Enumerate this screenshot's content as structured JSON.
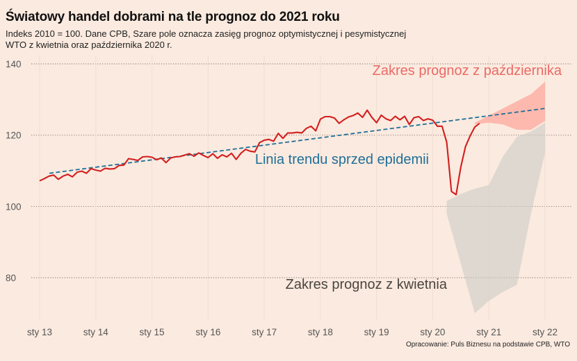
{
  "title": "Światowy handel dobrami na tle prognoz do 2021 roku",
  "subtitle": "Indeks 2010 = 100. Dane CPB, Szare pole oznacza zasięg prognoz optymistycznej i pesymistycznej WTO z kwietnia oraz października 2020 r.",
  "source": "Opracowanie: Puls Biznesu na podstawie CPB, WTO",
  "colors": {
    "background": "#fbeadf",
    "series": "#d21f1f",
    "trend": "#1f6f99",
    "october_band": "#ff8f85",
    "april_band": "#cdccc6"
  },
  "chart_data": {
    "type": "line",
    "xlim": [
      2013.0,
      2022.0
    ],
    "ylim": [
      68,
      142
    ],
    "grid": true,
    "x_ticks": [
      {
        "x": 2013.0,
        "label": "sty 13"
      },
      {
        "x": 2014.0,
        "label": "sty 14"
      },
      {
        "x": 2015.0,
        "label": "sty 15"
      },
      {
        "x": 2016.0,
        "label": "sty 16"
      },
      {
        "x": 2017.0,
        "label": "sty 17"
      },
      {
        "x": 2018.0,
        "label": "sty 18"
      },
      {
        "x": 2019.0,
        "label": "sty 19"
      },
      {
        "x": 2020.0,
        "label": "sty 20"
      },
      {
        "x": 2021.0,
        "label": "sty 21"
      },
      {
        "x": 2022.0,
        "label": "sty 22"
      }
    ],
    "y_ticks": [
      {
        "y": 80,
        "label": "80"
      },
      {
        "y": 100,
        "label": "100"
      },
      {
        "y": 120,
        "label": "120"
      },
      {
        "y": 140,
        "label": "140"
      }
    ],
    "annotations": {
      "october": "Zakres prognoz z października",
      "trend": "Linia trendu sprzed epidemii",
      "april": "Zakres prognoz z kwietnia"
    },
    "trend": {
      "x": [
        2013.0,
        2022.0
      ],
      "y": [
        109.3,
        127.5
      ]
    },
    "april_band": {
      "x": [
        2020.25,
        2020.5,
        2020.75,
        2021.0,
        2021.25,
        2021.5,
        2021.75,
        2022.0
      ],
      "upper": [
        101.5,
        103.5,
        105,
        106,
        114,
        119.5,
        121,
        123.5
      ],
      "lower": [
        98,
        84,
        70,
        73.5,
        76,
        78,
        98,
        115
      ]
    },
    "october_band": {
      "x": [
        2020.75,
        2021.0,
        2021.25,
        2021.5,
        2021.75,
        2022.0
      ],
      "upper": [
        123.5,
        125.5,
        127.5,
        129.5,
        131.5,
        135
      ],
      "lower": [
        123,
        123.5,
        123,
        121.5,
        121.5,
        124
      ]
    },
    "series": [
      {
        "x": [
          2013.0,
          2013.0833,
          2013.1667,
          2013.25,
          2013.3333,
          2013.4167,
          2013.5,
          2013.5833,
          2013.6667,
          2013.75,
          2013.8333,
          2013.9167,
          2014.0,
          2014.0833,
          2014.1667,
          2014.25,
          2014.3333,
          2014.4167,
          2014.5,
          2014.5833,
          2014.6667,
          2014.75,
          2014.8333,
          2014.9167,
          2015.0,
          2015.0833,
          2015.1667,
          2015.25,
          2015.3333,
          2015.4167,
          2015.5,
          2015.5833,
          2015.6667,
          2015.75,
          2015.8333,
          2015.9167,
          2016.0,
          2016.0833,
          2016.1667,
          2016.25,
          2016.3333,
          2016.4167,
          2016.5,
          2016.5833,
          2016.6667,
          2016.75,
          2016.8333,
          2016.9167,
          2017.0,
          2017.0833,
          2017.1667,
          2017.25,
          2017.3333,
          2017.4167,
          2017.5,
          2017.5833,
          2017.6667,
          2017.75,
          2017.8333,
          2017.9167,
          2018.0,
          2018.0833,
          2018.1667,
          2018.25,
          2018.3333,
          2018.4167,
          2018.5,
          2018.5833,
          2018.6667,
          2018.75,
          2018.8333,
          2018.9167,
          2019.0,
          2019.0833,
          2019.1667,
          2019.25,
          2019.3333,
          2019.4167,
          2019.5,
          2019.5833,
          2019.6667,
          2019.75,
          2019.8333,
          2019.9167,
          2020.0,
          2020.0833,
          2020.1667,
          2020.25,
          2020.3333,
          2020.4167,
          2020.5,
          2020.5833,
          2020.6667,
          2020.75,
          2020.8333
        ],
        "y": [
          107.2,
          107.8,
          108.5,
          108.8,
          107.6,
          108.5,
          109.0,
          108.3,
          109.6,
          109.9,
          109.3,
          110.6,
          110.2,
          109.9,
          110.7,
          110.5,
          110.6,
          111.5,
          111.6,
          113.4,
          113.2,
          112.9,
          113.9,
          114.0,
          113.8,
          113.1,
          113.6,
          112.3,
          113.6,
          113.9,
          114.0,
          114.4,
          114.8,
          114.1,
          115.0,
          114.3,
          113.7,
          114.8,
          113.5,
          114.5,
          113.9,
          114.9,
          113.2,
          114.9,
          116.0,
          115.5,
          115.3,
          117.9,
          118.6,
          118.8,
          118.3,
          120.5,
          119.1,
          120.6,
          120.6,
          120.8,
          120.6,
          121.9,
          122.5,
          121.2,
          124.5,
          125.2,
          125.2,
          124.8,
          123.3,
          124.3,
          125.1,
          125.5,
          126.2,
          125.0,
          127.0,
          125.0,
          123.5,
          125.6,
          124.6,
          124.1,
          125.3,
          124.3,
          125.3,
          123.0,
          124.9,
          125.2,
          124.1,
          124.6,
          124.2,
          122.5,
          122.5,
          118.0,
          104.2,
          103.3,
          111.0,
          116.8,
          119.8,
          122.3,
          123.3
        ]
      }
    ]
  }
}
